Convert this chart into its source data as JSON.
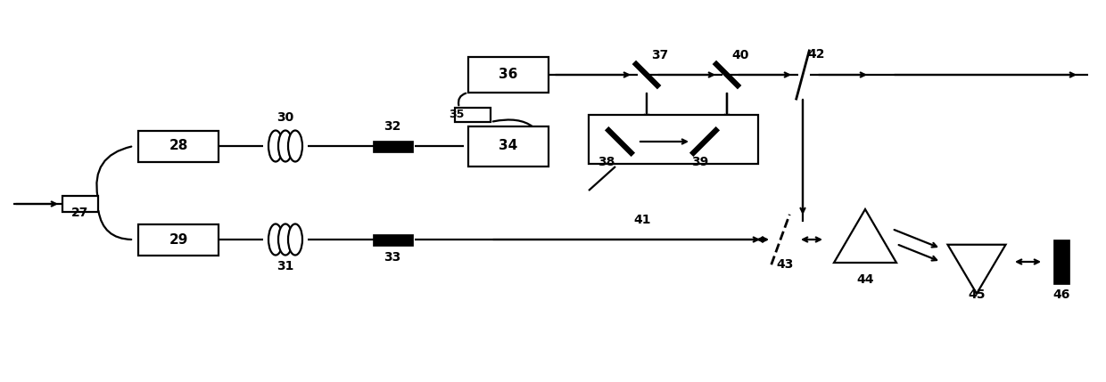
{
  "bg": "#ffffff",
  "lc": "#000000",
  "lw": 1.6,
  "lw_m": 4.5,
  "figsize": [
    12.4,
    4.29
  ],
  "dpi": 100,
  "xlim": [
    0,
    124
  ],
  "ylim": [
    0,
    42.9
  ],
  "y_top": 26.5,
  "y_bot": 16.0,
  "y_hi": 34.5
}
